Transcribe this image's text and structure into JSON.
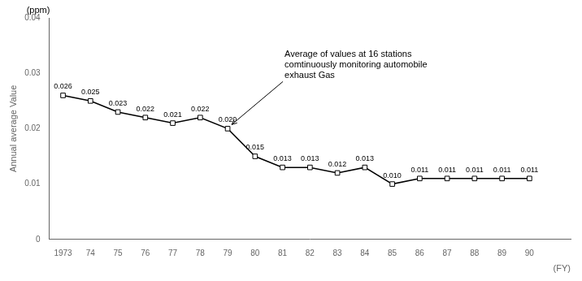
{
  "chart_data": {
    "type": "line",
    "x": [
      1973,
      1974,
      1975,
      1976,
      1977,
      1978,
      1979,
      1980,
      1981,
      1982,
      1983,
      1984,
      1985,
      1986,
      1987,
      1988,
      1989,
      1990
    ],
    "values": [
      0.026,
      0.025,
      0.023,
      0.022,
      0.021,
      0.022,
      0.02,
      0.015,
      0.013,
      0.013,
      0.012,
      0.013,
      0.01,
      0.011,
      0.011,
      0.011,
      0.011,
      0.011
    ],
    "value_labels": [
      "0.026",
      "0.025",
      "0.023",
      "0.022",
      "0.021",
      "0.022",
      "0.020",
      "0.015",
      "0.013",
      "0.013",
      "0.012",
      "0.013",
      "0.010",
      "0.011",
      "0.011",
      "0.011",
      "0.011",
      "0.011"
    ],
    "data_labels": true,
    "color": "#000000",
    "marker": "square",
    "xlabel": "(FY)",
    "ylabel": "Annual average Value",
    "xlim": [
      1972.5,
      1991.5
    ],
    "xticks": [
      1973,
      {
        "value": 1974,
        "label": "74"
      },
      {
        "value": 1975,
        "label": "75"
      },
      {
        "value": 1976,
        "label": "76"
      },
      {
        "value": 1977,
        "label": "77"
      },
      {
        "value": 1978,
        "label": "78"
      },
      {
        "value": 1979,
        "label": "79"
      },
      {
        "value": 1980,
        "label": "80"
      },
      {
        "value": 1981,
        "label": "81"
      },
      {
        "value": 1982,
        "label": "82"
      },
      {
        "value": 1983,
        "label": "83"
      },
      {
        "value": 1984,
        "label": "84"
      },
      {
        "value": 1985,
        "label": "85"
      },
      {
        "value": 1986,
        "label": "86"
      },
      {
        "value": 1987,
        "label": "87"
      },
      {
        "value": 1988,
        "label": "88"
      },
      {
        "value": 1989,
        "label": "89"
      },
      {
        "value": 1990,
        "label": "90"
      }
    ],
    "ylim": [
      0,
      0.04
    ],
    "yticks": [
      0,
      0.01,
      0.02,
      0.03,
      0.04
    ],
    "grid": false,
    "annotations": [
      {
        "text": "(ppm)"
      },
      {
        "text": "Average of values at 16 stations\ncomtinuously monitoring automobile\nexhaust Gas",
        "x": 1979
      }
    ]
  }
}
